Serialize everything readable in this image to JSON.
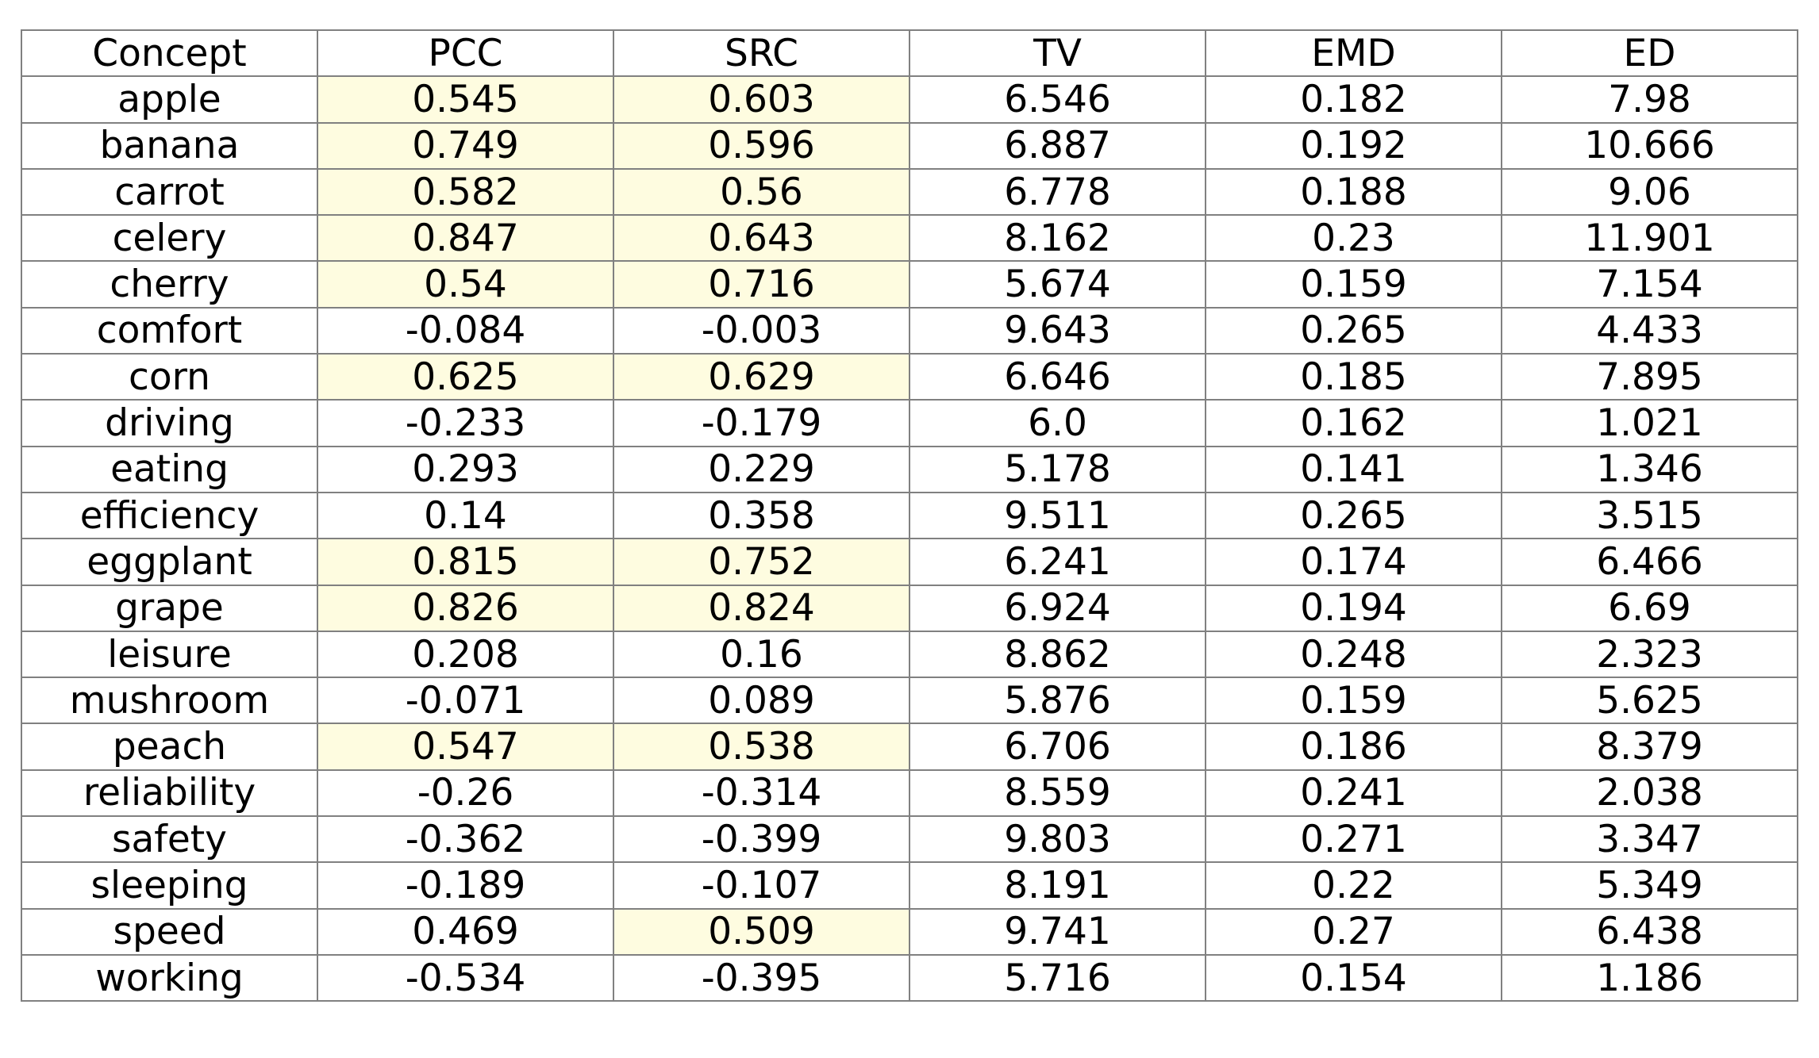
{
  "chart_data": {
    "type": "table",
    "columns": [
      "Concept",
      "PCC",
      "SRC",
      "TV",
      "EMD",
      "ED"
    ],
    "rows": [
      {
        "cells": [
          "apple",
          "0.545",
          "0.603",
          "6.546",
          "0.182",
          "7.98"
        ],
        "highlight": [
          false,
          true,
          true,
          false,
          false,
          false
        ]
      },
      {
        "cells": [
          "banana",
          "0.749",
          "0.596",
          "6.887",
          "0.192",
          "10.666"
        ],
        "highlight": [
          false,
          true,
          true,
          false,
          false,
          false
        ]
      },
      {
        "cells": [
          "carrot",
          "0.582",
          "0.56",
          "6.778",
          "0.188",
          "9.06"
        ],
        "highlight": [
          false,
          true,
          true,
          false,
          false,
          false
        ]
      },
      {
        "cells": [
          "celery",
          "0.847",
          "0.643",
          "8.162",
          "0.23",
          "11.901"
        ],
        "highlight": [
          false,
          true,
          true,
          false,
          false,
          false
        ]
      },
      {
        "cells": [
          "cherry",
          "0.54",
          "0.716",
          "5.674",
          "0.159",
          "7.154"
        ],
        "highlight": [
          false,
          true,
          true,
          false,
          false,
          false
        ]
      },
      {
        "cells": [
          "comfort",
          "-0.084",
          "-0.003",
          "9.643",
          "0.265",
          "4.433"
        ],
        "highlight": [
          false,
          false,
          false,
          false,
          false,
          false
        ]
      },
      {
        "cells": [
          "corn",
          "0.625",
          "0.629",
          "6.646",
          "0.185",
          "7.895"
        ],
        "highlight": [
          false,
          true,
          true,
          false,
          false,
          false
        ]
      },
      {
        "cells": [
          "driving",
          "-0.233",
          "-0.179",
          "6.0",
          "0.162",
          "1.021"
        ],
        "highlight": [
          false,
          false,
          false,
          false,
          false,
          false
        ]
      },
      {
        "cells": [
          "eating",
          "0.293",
          "0.229",
          "5.178",
          "0.141",
          "1.346"
        ],
        "highlight": [
          false,
          false,
          false,
          false,
          false,
          false
        ]
      },
      {
        "cells": [
          "efficiency",
          "0.14",
          "0.358",
          "9.511",
          "0.265",
          "3.515"
        ],
        "highlight": [
          false,
          false,
          false,
          false,
          false,
          false
        ]
      },
      {
        "cells": [
          "eggplant",
          "0.815",
          "0.752",
          "6.241",
          "0.174",
          "6.466"
        ],
        "highlight": [
          false,
          true,
          true,
          false,
          false,
          false
        ]
      },
      {
        "cells": [
          "grape",
          "0.826",
          "0.824",
          "6.924",
          "0.194",
          "6.69"
        ],
        "highlight": [
          false,
          true,
          true,
          false,
          false,
          false
        ]
      },
      {
        "cells": [
          "leisure",
          "0.208",
          "0.16",
          "8.862",
          "0.248",
          "2.323"
        ],
        "highlight": [
          false,
          false,
          false,
          false,
          false,
          false
        ]
      },
      {
        "cells": [
          "mushroom",
          "-0.071",
          "0.089",
          "5.876",
          "0.159",
          "5.625"
        ],
        "highlight": [
          false,
          false,
          false,
          false,
          false,
          false
        ]
      },
      {
        "cells": [
          "peach",
          "0.547",
          "0.538",
          "6.706",
          "0.186",
          "8.379"
        ],
        "highlight": [
          false,
          true,
          true,
          false,
          false,
          false
        ]
      },
      {
        "cells": [
          "reliability",
          "-0.26",
          "-0.314",
          "8.559",
          "0.241",
          "2.038"
        ],
        "highlight": [
          false,
          false,
          false,
          false,
          false,
          false
        ]
      },
      {
        "cells": [
          "safety",
          "-0.362",
          "-0.399",
          "9.803",
          "0.271",
          "3.347"
        ],
        "highlight": [
          false,
          false,
          false,
          false,
          false,
          false
        ]
      },
      {
        "cells": [
          "sleeping",
          "-0.189",
          "-0.107",
          "8.191",
          "0.22",
          "5.349"
        ],
        "highlight": [
          false,
          false,
          false,
          false,
          false,
          false
        ]
      },
      {
        "cells": [
          "speed",
          "0.469",
          "0.509",
          "9.741",
          "0.27",
          "6.438"
        ],
        "highlight": [
          false,
          false,
          true,
          false,
          false,
          false
        ]
      },
      {
        "cells": [
          "working",
          "-0.534",
          "-0.395",
          "5.716",
          "0.154",
          "1.186"
        ],
        "highlight": [
          false,
          false,
          false,
          false,
          false,
          false
        ]
      }
    ],
    "colors": {
      "highlight": "#fefce0",
      "border": "#808080",
      "text": "#000000",
      "background": "#ffffff"
    }
  }
}
